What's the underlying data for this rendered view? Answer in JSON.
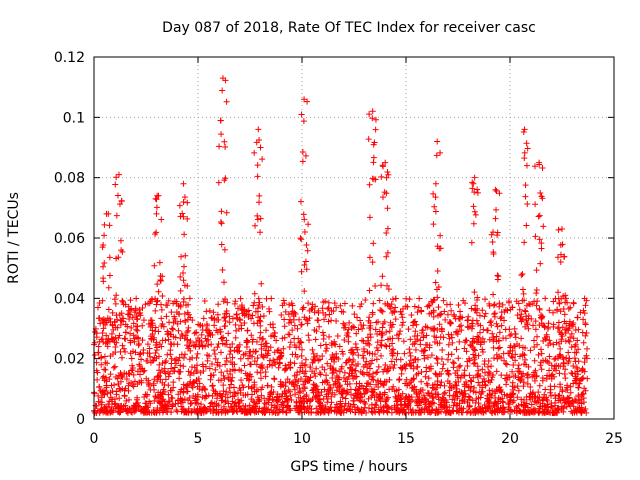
{
  "chart_data": {
    "type": "scatter",
    "title": "Day 087 of 2018, Rate Of TEC Index for receiver casc",
    "xlabel": "GPS time / hours",
    "ylabel": "ROTI / TECUs",
    "xlim": [
      0,
      25
    ],
    "ylim": [
      0,
      0.12
    ],
    "x_ticks": [
      0,
      5,
      10,
      15,
      20,
      25
    ],
    "x_tick_labels": [
      "0",
      "5",
      "10",
      "15",
      "20",
      "25"
    ],
    "y_ticks": [
      0,
      0.02,
      0.04,
      0.06,
      0.08,
      0.1,
      0.12
    ],
    "y_tick_labels": [
      "0",
      "0.02",
      "0.04",
      "0.06",
      "0.08",
      "0.1",
      "0.12"
    ],
    "grid": true,
    "marker": "plus",
    "series": [
      {
        "name": "ROTI",
        "color": "#ff0000",
        "x_range_hours": [
          0,
          23.75
        ],
        "sampling_interval_hours": 0.05,
        "peaks": [
          {
            "x": 0.6,
            "y": 0.068
          },
          {
            "x": 1.2,
            "y": 0.081
          },
          {
            "x": 3.1,
            "y": 0.074
          },
          {
            "x": 4.3,
            "y": 0.078
          },
          {
            "x": 6.2,
            "y": 0.113
          },
          {
            "x": 7.9,
            "y": 0.096
          },
          {
            "x": 10.1,
            "y": 0.106
          },
          {
            "x": 13.4,
            "y": 0.102
          },
          {
            "x": 14.0,
            "y": 0.085
          },
          {
            "x": 16.5,
            "y": 0.092
          },
          {
            "x": 18.3,
            "y": 0.08
          },
          {
            "x": 19.3,
            "y": 0.076
          },
          {
            "x": 20.7,
            "y": 0.096
          },
          {
            "x": 21.4,
            "y": 0.085
          },
          {
            "x": 22.5,
            "y": 0.063
          }
        ],
        "typical_range": [
          0.002,
          0.04
        ]
      }
    ]
  }
}
